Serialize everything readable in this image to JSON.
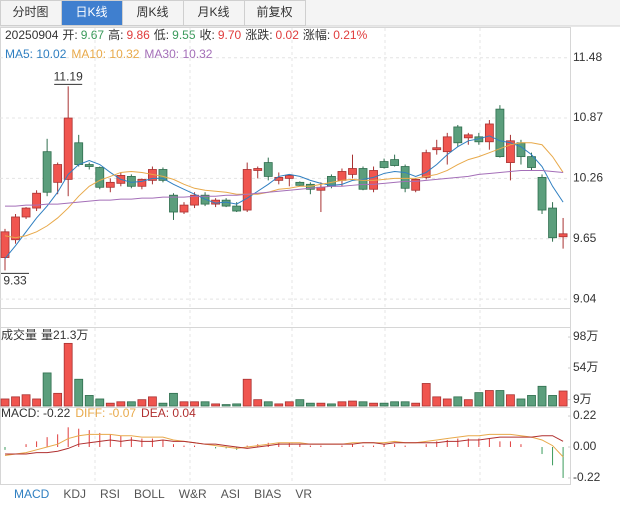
{
  "tabs": [
    "分时图",
    "日K线",
    "周K线",
    "月K线",
    "前复权"
  ],
  "active_tab": 1,
  "info": {
    "date": "20250904",
    "items": [
      {
        "label": "开:",
        "value": "9.67",
        "color": "#3a9a5b"
      },
      {
        "label": "高:",
        "value": "9.86",
        "color": "#e03c3c"
      },
      {
        "label": "低:",
        "value": "9.55",
        "color": "#3a9a5b"
      },
      {
        "label": "收:",
        "value": "9.70",
        "color": "#e03c3c"
      },
      {
        "label": "涨跌:",
        "value": "0.02",
        "color": "#e03c3c"
      },
      {
        "label": "涨幅:",
        "value": "0.21%",
        "color": "#e03c3c"
      }
    ]
  },
  "indicator_tabs": [
    "MACD",
    "KDJ",
    "RSI",
    "BOLL",
    "W&R",
    "ASI",
    "BIAS",
    "VR"
  ],
  "active_indicator": 0,
  "chart_data": [
    {
      "type": "candlestick",
      "up_color": "#f0554f",
      "down_color": "#5b9e7c",
      "grid": true,
      "ylim": [
        8.96,
        11.77
      ],
      "yticks": [
        11.48,
        10.87,
        10.26,
        9.65,
        9.04
      ],
      "open": [
        9.46,
        9.64,
        9.87,
        9.96,
        10.53,
        10.22,
        10.25,
        10.62,
        10.4,
        10.37,
        10.17,
        10.21,
        10.28,
        10.18,
        10.24,
        10.35,
        10.09,
        9.92,
        9.99,
        10.09,
        10.0,
        10.04,
        9.98,
        9.94,
        10.34,
        10.42,
        10.24,
        10.26,
        10.22,
        10.2,
        10.14,
        10.28,
        10.24,
        10.3,
        10.36,
        10.15,
        10.43,
        10.45,
        10.38,
        10.14,
        10.27,
        10.55,
        10.53,
        10.78,
        10.67,
        10.68,
        10.63,
        10.96,
        10.42,
        10.62,
        10.48,
        10.27,
        9.96,
        9.67
      ],
      "high": [
        9.75,
        9.9,
        9.97,
        10.14,
        10.66,
        10.42,
        11.19,
        10.7,
        10.42,
        10.38,
        10.26,
        10.32,
        10.3,
        10.26,
        10.38,
        10.37,
        10.11,
        10.02,
        10.12,
        10.12,
        10.06,
        10.06,
        10.02,
        10.42,
        10.38,
        10.47,
        10.32,
        10.3,
        10.23,
        10.22,
        10.22,
        10.3,
        10.36,
        10.5,
        10.38,
        10.38,
        10.46,
        10.5,
        10.4,
        10.26,
        10.55,
        10.65,
        10.72,
        10.8,
        10.72,
        10.72,
        10.85,
        11.0,
        10.7,
        10.65,
        10.52,
        10.3,
        10.02,
        9.86
      ],
      "low": [
        9.33,
        9.6,
        9.85,
        9.93,
        10.08,
        10.1,
        10.08,
        10.38,
        10.35,
        10.15,
        10.12,
        10.18,
        10.16,
        10.15,
        10.2,
        10.22,
        9.84,
        9.9,
        9.96,
        9.98,
        9.97,
        9.97,
        9.92,
        9.92,
        10.26,
        10.24,
        10.2,
        10.18,
        10.18,
        10.1,
        9.92,
        10.16,
        10.18,
        10.26,
        10.14,
        10.12,
        10.36,
        10.38,
        10.12,
        10.12,
        10.25,
        10.5,
        10.4,
        10.58,
        10.6,
        10.6,
        10.55,
        10.47,
        10.24,
        10.4,
        10.34,
        9.9,
        9.62,
        9.55
      ],
      "close": [
        9.72,
        9.87,
        9.96,
        10.11,
        10.12,
        10.4,
        10.87,
        10.4,
        10.38,
        10.17,
        10.22,
        10.29,
        10.18,
        10.25,
        10.35,
        10.24,
        9.92,
        9.99,
        10.09,
        10.0,
        10.04,
        9.98,
        9.93,
        10.35,
        10.36,
        10.28,
        10.27,
        10.29,
        10.19,
        10.15,
        10.17,
        10.18,
        10.33,
        10.36,
        10.15,
        10.34,
        10.37,
        10.39,
        10.16,
        10.25,
        10.52,
        10.57,
        10.68,
        10.62,
        10.7,
        10.63,
        10.81,
        10.48,
        10.64,
        10.48,
        10.37,
        9.94,
        9.66,
        9.7
      ],
      "series": [
        {
          "name": "MA5: 10.02",
          "color": "#2f7fc1",
          "values": [
            9.45,
            9.58,
            9.72,
            9.86,
            9.98,
            10.12,
            10.3,
            10.4,
            10.44,
            10.4,
            10.32,
            10.25,
            10.22,
            10.23,
            10.26,
            10.26,
            10.2,
            10.15,
            10.1,
            10.05,
            10.01,
            10.02,
            10.0,
            10.06,
            10.13,
            10.2,
            10.28,
            10.3,
            10.28,
            10.24,
            10.21,
            10.19,
            10.2,
            10.24,
            10.25,
            10.27,
            10.31,
            10.33,
            10.32,
            10.28,
            10.32,
            10.4,
            10.5,
            10.58,
            10.64,
            10.66,
            10.69,
            10.64,
            10.62,
            10.58,
            10.5,
            10.38,
            10.18,
            10.02
          ]
        },
        {
          "name": "MA10: 10.32",
          "color": "#e8a94a",
          "values": [
            9.68,
            9.66,
            9.68,
            9.72,
            9.78,
            9.86,
            9.96,
            10.08,
            10.18,
            10.24,
            10.28,
            10.32,
            10.33,
            10.32,
            10.3,
            10.28,
            10.25,
            10.2,
            10.16,
            10.14,
            10.13,
            10.12,
            10.1,
            10.1,
            10.1,
            10.12,
            10.15,
            10.16,
            10.18,
            10.18,
            10.2,
            10.22,
            10.24,
            10.25,
            10.24,
            10.24,
            10.25,
            10.26,
            10.26,
            10.26,
            10.28,
            10.3,
            10.34,
            10.4,
            10.45,
            10.48,
            10.52,
            10.56,
            10.6,
            10.62,
            10.62,
            10.6,
            10.48,
            10.32
          ]
        },
        {
          "name": "MA30: 10.32",
          "color": "#a46fb8",
          "values": [
            9.98,
            9.98,
            9.99,
            9.99,
            10.0,
            10.0,
            10.01,
            10.02,
            10.03,
            10.04,
            10.04,
            10.05,
            10.05,
            10.06,
            10.06,
            10.07,
            10.07,
            10.07,
            10.08,
            10.08,
            10.08,
            10.09,
            10.09,
            10.1,
            10.11,
            10.12,
            10.13,
            10.14,
            10.15,
            10.16,
            10.17,
            10.18,
            10.18,
            10.19,
            10.2,
            10.2,
            10.21,
            10.22,
            10.23,
            10.23,
            10.24,
            10.25,
            10.26,
            10.27,
            10.28,
            10.3,
            10.31,
            10.32,
            10.33,
            10.34,
            10.34,
            10.34,
            10.33,
            10.32
          ]
        }
      ]
    },
    {
      "type": "bar",
      "title": "成交量",
      "subtitle": "量21.3万",
      "ylim": [
        0,
        108
      ],
      "yticks": [
        {
          "value": 98,
          "label": "98万"
        },
        {
          "value": 54,
          "label": "54万"
        },
        {
          "value": 9,
          "label": "9万"
        }
      ],
      "values": [
        10,
        13,
        16,
        10,
        47,
        18,
        89,
        38,
        15,
        10,
        4,
        6,
        6,
        9,
        13,
        4,
        18,
        6,
        6,
        6,
        3,
        2,
        3,
        38,
        9,
        6,
        3,
        6,
        9,
        4,
        4,
        3,
        6,
        7,
        6,
        4,
        4,
        6,
        6,
        4,
        32,
        13,
        10,
        13,
        9,
        19,
        22,
        22,
        16,
        10,
        15,
        28,
        15,
        21.3
      ]
    },
    {
      "type": "macd",
      "pos_color": "#e03c3c",
      "neg_color": "#3a9a5b",
      "ylim": [
        -0.27,
        0.27
      ],
      "yticks": [
        0.22,
        {
          "value": 0,
          "label": "0.00"
        },
        -0.22
      ],
      "label": "MACD: -0.22",
      "label_color": "#333333",
      "values": [
        -0.02,
        0.0,
        0.02,
        0.04,
        0.07,
        0.09,
        0.14,
        0.13,
        0.12,
        0.1,
        0.09,
        0.08,
        0.07,
        0.06,
        0.06,
        0.05,
        0.02,
        0.01,
        0.01,
        0.0,
        -0.01,
        -0.01,
        -0.02,
        0.01,
        0.02,
        0.03,
        0.03,
        0.03,
        0.02,
        0.01,
        0.01,
        0.0,
        0.01,
        0.02,
        0.01,
        0.01,
        0.02,
        0.02,
        0.01,
        0.0,
        0.02,
        0.04,
        0.05,
        0.06,
        0.06,
        0.06,
        0.06,
        0.04,
        0.04,
        0.02,
        0.0,
        -0.05,
        -0.13,
        -0.22
      ],
      "series": [
        {
          "name": "DIFF: -0.07",
          "color": "#e8a94a",
          "values": [
            -0.06,
            -0.05,
            -0.04,
            -0.02,
            0.0,
            0.02,
            0.06,
            0.08,
            0.09,
            0.09,
            0.09,
            0.08,
            0.08,
            0.07,
            0.07,
            0.07,
            0.05,
            0.04,
            0.03,
            0.02,
            0.01,
            0.0,
            -0.01,
            0.0,
            0.01,
            0.02,
            0.03,
            0.03,
            0.03,
            0.02,
            0.02,
            0.02,
            0.02,
            0.03,
            0.03,
            0.03,
            0.03,
            0.04,
            0.03,
            0.03,
            0.04,
            0.05,
            0.06,
            0.07,
            0.08,
            0.08,
            0.09,
            0.09,
            0.09,
            0.08,
            0.07,
            0.05,
            0.01,
            -0.07
          ]
        },
        {
          "name": "DEA: 0.04",
          "color": "#b03030",
          "values": [
            -0.05,
            -0.05,
            -0.05,
            -0.04,
            -0.04,
            -0.03,
            -0.01,
            0.02,
            0.03,
            0.04,
            0.05,
            0.04,
            0.05,
            0.04,
            0.04,
            0.05,
            0.04,
            0.04,
            0.03,
            0.02,
            0.02,
            0.01,
            0.0,
            -0.01,
            0.0,
            0.01,
            0.02,
            0.02,
            0.02,
            0.02,
            0.02,
            0.02,
            0.02,
            0.02,
            0.03,
            0.03,
            0.02,
            0.03,
            0.03,
            0.03,
            0.03,
            0.03,
            0.04,
            0.04,
            0.05,
            0.05,
            0.06,
            0.07,
            0.07,
            0.07,
            0.07,
            0.08,
            0.08,
            0.04
          ]
        }
      ]
    }
  ]
}
